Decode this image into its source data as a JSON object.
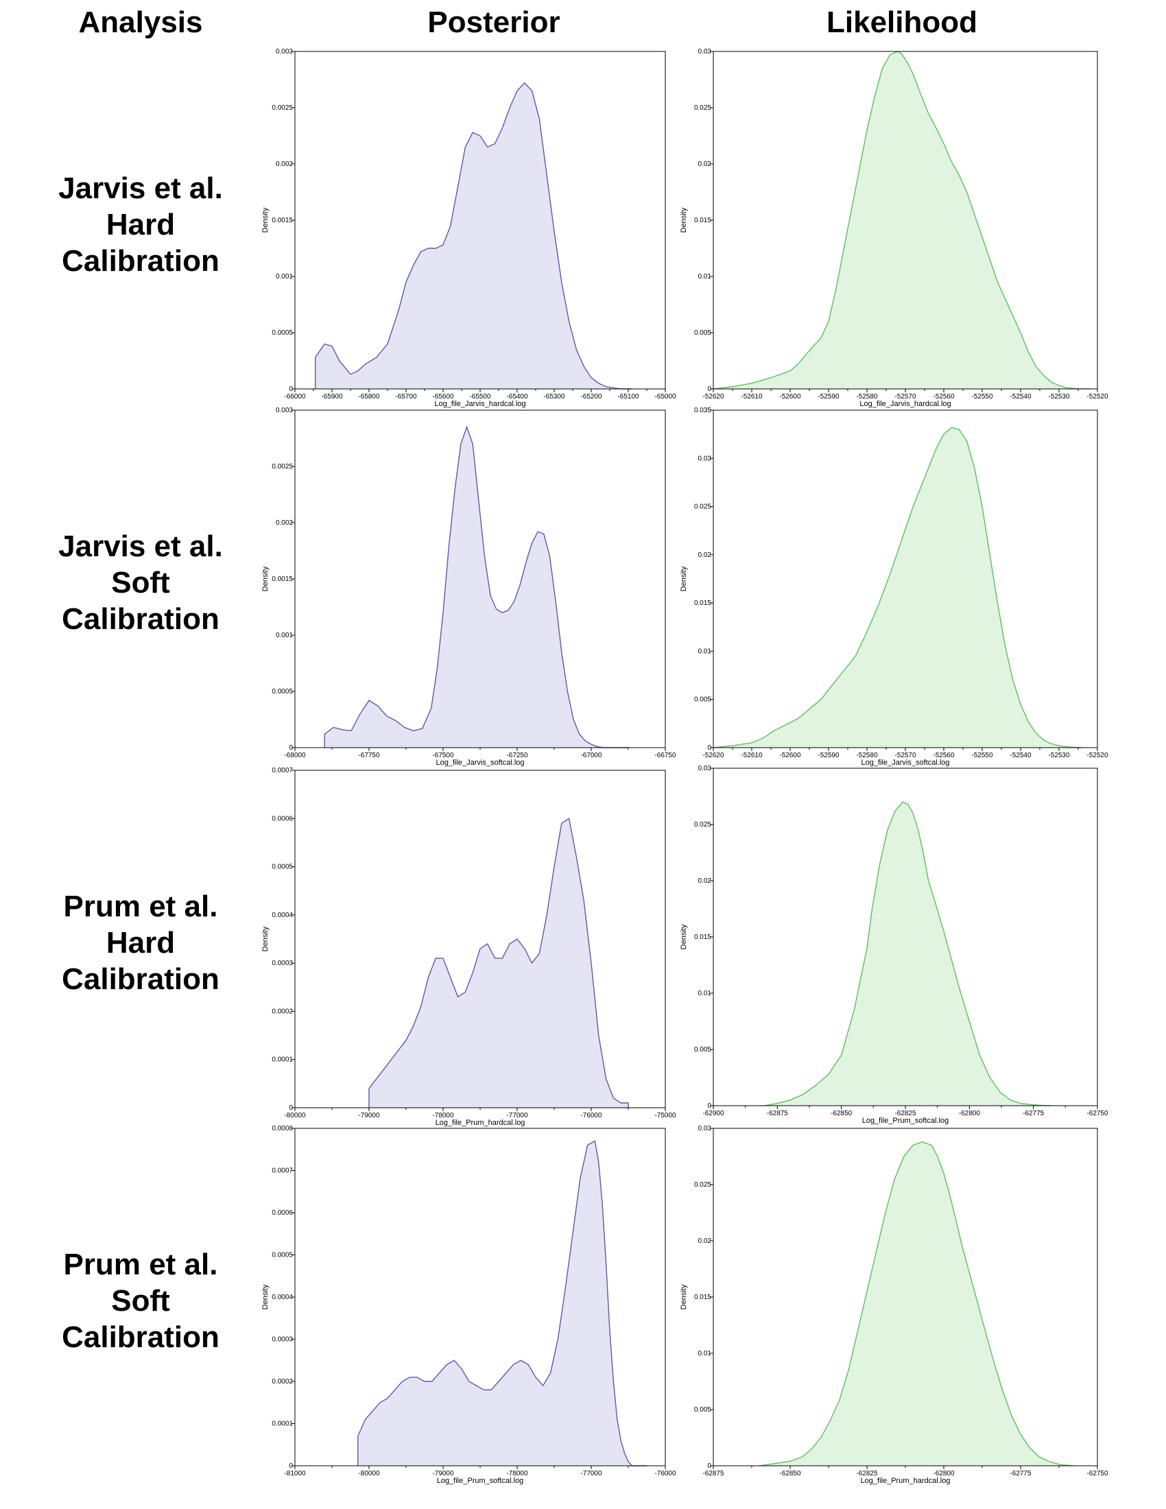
{
  "headers": {
    "analysis": "Analysis",
    "posterior": "Posterior",
    "likelihood": "Likelihood"
  },
  "rows": [
    {
      "lines": [
        "Jarvis et al.",
        "Hard",
        "Calibration"
      ]
    },
    {
      "lines": [
        "Jarvis et al.",
        "Soft",
        "Calibration"
      ]
    },
    {
      "lines": [
        "Prum et al.",
        "Hard",
        "Calibration"
      ]
    },
    {
      "lines": [
        "Prum et al.",
        "Soft",
        "Calibration"
      ]
    }
  ],
  "colors": {
    "posterior_line": "#5a5aa8",
    "posterior_fill": "#e4e4f4",
    "likelihood_line": "#5cbf5c",
    "likelihood_fill": "#e0f4e0"
  },
  "chart_data": [
    {
      "type": "area",
      "column": "posterior",
      "xlabel": "Log_file_Jarvis_hardcal.log",
      "ylabel": "Density",
      "xlim": [
        -66000,
        -65000
      ],
      "ylim": [
        0,
        0.003
      ],
      "xticks": [
        "-66000",
        "-65900",
        "-65800",
        "-65700",
        "-65600",
        "-65500",
        "-65400",
        "-65300",
        "-65200",
        "-65100",
        "-65000"
      ],
      "yticks": [
        "0",
        "0.0005",
        "0.001",
        "0.0015",
        "0.002",
        "0.0025",
        "0.003"
      ],
      "x": [
        -65945,
        -65945,
        -65920,
        -65900,
        -65880,
        -65850,
        -65830,
        -65810,
        -65780,
        -65750,
        -65720,
        -65700,
        -65680,
        -65660,
        -65640,
        -65620,
        -65600,
        -65580,
        -65560,
        -65540,
        -65520,
        -65500,
        -65480,
        -65460,
        -65440,
        -65420,
        -65400,
        -65380,
        -65360,
        -65340,
        -65320,
        -65300,
        -65280,
        -65260,
        -65240,
        -65220,
        -65200,
        -65180,
        -65160,
        -65140,
        -65120,
        -65100,
        -65090
      ],
      "y": [
        0,
        0.00028,
        0.0004,
        0.00038,
        0.00025,
        0.00013,
        0.00016,
        0.00022,
        0.00028,
        0.0004,
        0.0007,
        0.00095,
        0.0011,
        0.00122,
        0.00125,
        0.00125,
        0.00128,
        0.00145,
        0.0018,
        0.00215,
        0.00228,
        0.00225,
        0.00215,
        0.00218,
        0.00232,
        0.0025,
        0.00265,
        0.00272,
        0.00265,
        0.0024,
        0.0019,
        0.0014,
        0.00095,
        0.0006,
        0.00035,
        0.0002,
        0.0001,
        5e-05,
        2e-05,
        1e-05,
        0,
        0,
        0
      ]
    },
    {
      "type": "area",
      "column": "likelihood",
      "xlabel": "Log_file_Jarvis_hardcal.log",
      "ylabel": "Density",
      "xlim": [
        -52620,
        -52520
      ],
      "ylim": [
        0,
        0.03
      ],
      "xticks": [
        "-52620",
        "-52610",
        "-52600",
        "-52590",
        "-52580",
        "-52570",
        "-52560",
        "-52550",
        "-52540",
        "-52530",
        "-52520"
      ],
      "yticks": [
        "0",
        "0.005",
        "0.01",
        "0.015",
        "0.02",
        "0.025",
        "0.03"
      ],
      "x": [
        -52620,
        -52615,
        -52610,
        -52605,
        -52600,
        -52598,
        -52596,
        -52594,
        -52592,
        -52590,
        -52588,
        -52586,
        -52584,
        -52582,
        -52580,
        -52578,
        -52576,
        -52574,
        -52572,
        -52571,
        -52570,
        -52569,
        -52568,
        -52566,
        -52564,
        -52562,
        -52560,
        -52558,
        -52556,
        -52554,
        -52552,
        -52550,
        -52548,
        -52546,
        -52544,
        -52542,
        -52540,
        -52538,
        -52536,
        -52534,
        -52532,
        -52530,
        -52528,
        -52525,
        -52522
      ],
      "y": [
        0,
        0.0002,
        0.0005,
        0.001,
        0.0016,
        0.0022,
        0.003,
        0.0038,
        0.0045,
        0.006,
        0.009,
        0.0125,
        0.016,
        0.0195,
        0.023,
        0.026,
        0.0285,
        0.0297,
        0.03,
        0.0298,
        0.0293,
        0.0287,
        0.028,
        0.0262,
        0.0245,
        0.0232,
        0.0218,
        0.0202,
        0.019,
        0.0175,
        0.0155,
        0.0135,
        0.0115,
        0.0095,
        0.008,
        0.0065,
        0.005,
        0.0033,
        0.002,
        0.0012,
        0.0006,
        0.0003,
        0.0001,
        2e-05,
        0
      ]
    },
    {
      "type": "area",
      "column": "posterior",
      "xlabel": "Log_file_Jarvis_softcal.log",
      "ylabel": "Density",
      "xlim": [
        -68000,
        -66750
      ],
      "ylim": [
        0,
        0.003
      ],
      "xticks": [
        "-68000",
        "-67750",
        "-67500",
        "-67250",
        "-67000",
        "-66750"
      ],
      "yticks": [
        "0",
        "0.0005",
        "0.001",
        "0.0015",
        "0.002",
        "0.0025",
        "0.003"
      ],
      "x": [
        -67900,
        -67900,
        -67870,
        -67840,
        -67810,
        -67780,
        -67750,
        -67720,
        -67690,
        -67660,
        -67630,
        -67600,
        -67570,
        -67540,
        -67520,
        -67500,
        -67480,
        -67460,
        -67440,
        -67420,
        -67400,
        -67380,
        -67360,
        -67340,
        -67320,
        -67300,
        -67280,
        -67260,
        -67240,
        -67220,
        -67200,
        -67180,
        -67160,
        -67140,
        -67120,
        -67100,
        -67080,
        -67060,
        -67040,
        -67020,
        -67000,
        -66980,
        -66960,
        -66940,
        -66920,
        -66900,
        -66880,
        -66875
      ],
      "y": [
        0,
        0.00012,
        0.00018,
        0.00016,
        0.00015,
        0.0003,
        0.00042,
        0.00037,
        0.00028,
        0.00024,
        0.00018,
        0.00015,
        0.00017,
        0.00035,
        0.0007,
        0.0012,
        0.0018,
        0.0023,
        0.0027,
        0.00285,
        0.0027,
        0.0022,
        0.0017,
        0.00135,
        0.00123,
        0.0012,
        0.00122,
        0.0013,
        0.00145,
        0.00165,
        0.00182,
        0.00192,
        0.0019,
        0.0017,
        0.0013,
        0.00085,
        0.0005,
        0.00025,
        0.00012,
        6e-05,
        3e-05,
        1e-05,
        0,
        0,
        0,
        0,
        0,
        0
      ]
    },
    {
      "type": "area",
      "column": "likelihood",
      "xlabel": "Log_file_Jarvis_softcal.log",
      "ylabel": "Density",
      "xlim": [
        -52620,
        -52520
      ],
      "ylim": [
        0,
        0.035
      ],
      "xticks": [
        "-52620",
        "-52610",
        "-52600",
        "-52590",
        "-52580",
        "-52570",
        "-52560",
        "-52550",
        "-52540",
        "-52530",
        "-52520"
      ],
      "yticks": [
        "0",
        "0.005",
        "0.01",
        "0.015",
        "0.02",
        "0.025",
        "0.03",
        "0.035"
      ],
      "x": [
        -52620,
        -52615,
        -52610,
        -52607,
        -52604,
        -52601,
        -52598,
        -52595,
        -52592,
        -52589,
        -52586,
        -52583,
        -52580,
        -52577,
        -52574,
        -52571,
        -52568,
        -52565,
        -52562,
        -52560,
        -52558,
        -52556,
        -52554,
        -52552,
        -52550,
        -52548,
        -52546,
        -52544,
        -52542,
        -52540,
        -52538,
        -52536,
        -52534,
        -52532,
        -52530,
        -52527,
        -52524
      ],
      "y": [
        0,
        0.0002,
        0.0005,
        0.001,
        0.0018,
        0.0024,
        0.003,
        0.004,
        0.005,
        0.0065,
        0.008,
        0.0095,
        0.012,
        0.0148,
        0.018,
        0.0215,
        0.025,
        0.028,
        0.031,
        0.0325,
        0.0332,
        0.033,
        0.0318,
        0.029,
        0.025,
        0.02,
        0.015,
        0.0105,
        0.007,
        0.0045,
        0.0027,
        0.0015,
        0.0008,
        0.0004,
        0.0002,
        5e-05,
        0
      ]
    },
    {
      "type": "area",
      "column": "posterior",
      "xlabel": "Log_file_Prum_hardcal.log",
      "ylabel": "Density",
      "xlim": [
        -80000,
        -75000
      ],
      "ylim": [
        0,
        0.0007
      ],
      "xticks": [
        "-80000",
        "-79000",
        "-78000",
        "-77000",
        "-76000",
        "-75000"
      ],
      "yticks": [
        "0",
        "0.0001",
        "0.0002",
        "0.0003",
        "0.0004",
        "0.0005",
        "0.0006",
        "0.0007"
      ],
      "x": [
        -79000,
        -79000,
        -78900,
        -78800,
        -78700,
        -78600,
        -78500,
        -78400,
        -78300,
        -78200,
        -78100,
        -78000,
        -77900,
        -77800,
        -77700,
        -77600,
        -77500,
        -77400,
        -77300,
        -77200,
        -77100,
        -77000,
        -76900,
        -76800,
        -76700,
        -76600,
        -76500,
        -76400,
        -76300,
        -76200,
        -76100,
        -76000,
        -75900,
        -75800,
        -75700,
        -75600,
        -75500,
        -75500
      ],
      "y": [
        0,
        4e-05,
        6e-05,
        8e-05,
        0.0001,
        0.00012,
        0.00014,
        0.00017,
        0.00021,
        0.00027,
        0.00031,
        0.00031,
        0.00027,
        0.00023,
        0.00024,
        0.00028,
        0.00033,
        0.00034,
        0.00031,
        0.00031,
        0.00034,
        0.00035,
        0.00033,
        0.0003,
        0.00032,
        0.0004,
        0.0005,
        0.00059,
        0.0006,
        0.00052,
        0.00043,
        0.0003,
        0.00015,
        6e-05,
        2e-05,
        1e-05,
        1e-05,
        0
      ]
    },
    {
      "type": "area",
      "column": "likelihood",
      "xlabel": "Log_file_Prum_softcal.log",
      "ylabel": "Density",
      "xlim": [
        -62900,
        -62750
      ],
      "ylim": [
        0,
        0.03
      ],
      "xticks": [
        "-62900",
        "-62875",
        "-62850",
        "-62825",
        "-62800",
        "-62775",
        "-62750"
      ],
      "yticks": [
        "0",
        "0.005",
        "0.01",
        "0.015",
        "0.02",
        "0.025",
        "0.03"
      ],
      "x": [
        -62880,
        -62875,
        -62870,
        -62865,
        -62860,
        -62855,
        -62850,
        -62845,
        -62840,
        -62838,
        -62835,
        -62832,
        -62829,
        -62826,
        -62824,
        -62822,
        -62820,
        -62818,
        -62816,
        -62813,
        -62810,
        -62807,
        -62804,
        -62800,
        -62796,
        -62792,
        -62788,
        -62784,
        -62780,
        -62776,
        -62772,
        -62768
      ],
      "y": [
        0,
        0.0002,
        0.0005,
        0.001,
        0.0018,
        0.0028,
        0.0045,
        0.0085,
        0.014,
        0.0175,
        0.0215,
        0.0245,
        0.0262,
        0.027,
        0.0268,
        0.026,
        0.0245,
        0.0225,
        0.02,
        0.0178,
        0.0155,
        0.013,
        0.0105,
        0.0075,
        0.0045,
        0.0025,
        0.0012,
        0.0005,
        0.0002,
        0.0001,
        3e-05,
        0
      ]
    },
    {
      "type": "area",
      "column": "posterior",
      "xlabel": "Log_file_Prum_softcal.log",
      "ylabel": "Density",
      "xlim": [
        -81000,
        -76000
      ],
      "ylim": [
        0,
        0.0008
      ],
      "xticks": [
        "-81000",
        "-80000",
        "-79000",
        "-78000",
        "-77000",
        "-76000"
      ],
      "yticks": [
        "0",
        "0.0001",
        "0.0002",
        "0.0003",
        "0.0004",
        "0.0005",
        "0.0006",
        "0.0007",
        "0.0008"
      ],
      "x": [
        -80150,
        -80150,
        -80050,
        -79950,
        -79850,
        -79750,
        -79650,
        -79550,
        -79450,
        -79350,
        -79250,
        -79150,
        -79050,
        -78950,
        -78850,
        -78750,
        -78650,
        -78550,
        -78450,
        -78350,
        -78250,
        -78150,
        -78050,
        -77950,
        -77850,
        -77750,
        -77650,
        -77550,
        -77450,
        -77350,
        -77250,
        -77150,
        -77050,
        -76950,
        -76900,
        -76850,
        -76800,
        -76750,
        -76700,
        -76650,
        -76600,
        -76550,
        -76500,
        -76450,
        -76400,
        -76350,
        -76300,
        -76250
      ],
      "y": [
        0,
        7e-05,
        0.00011,
        0.00013,
        0.00015,
        0.00016,
        0.00018,
        0.0002,
        0.00021,
        0.00021,
        0.0002,
        0.0002,
        0.00022,
        0.00024,
        0.00025,
        0.00023,
        0.0002,
        0.00019,
        0.00018,
        0.00018,
        0.0002,
        0.00022,
        0.00024,
        0.00025,
        0.00024,
        0.00021,
        0.00019,
        0.00022,
        0.0003,
        0.00042,
        0.00055,
        0.00068,
        0.00076,
        0.00077,
        0.00072,
        0.00062,
        0.00048,
        0.00032,
        0.0002,
        0.00011,
        6e-05,
        3e-05,
        1e-05,
        0,
        0,
        0,
        0,
        0
      ]
    },
    {
      "type": "area",
      "column": "likelihood",
      "xlabel": "Log_file_Prum_hardcal.log",
      "ylabel": "Density",
      "xlim": [
        -62875,
        -62750
      ],
      "ylim": [
        0,
        0.03
      ],
      "xticks": [
        "-62875",
        "-62850",
        "-62825",
        "-62800",
        "-62775",
        "-62750"
      ],
      "yticks": [
        "0",
        "0.005",
        "0.01",
        "0.015",
        "0.02",
        "0.025",
        "0.03"
      ],
      "x": [
        -62860,
        -62855,
        -62850,
        -62846,
        -62843,
        -62840,
        -62837,
        -62834,
        -62831,
        -62828,
        -62825,
        -62822,
        -62819,
        -62816,
        -62813,
        -62810,
        -62807,
        -62804,
        -62802,
        -62800,
        -62798,
        -62796,
        -62794,
        -62792,
        -62790,
        -62787,
        -62784,
        -62781,
        -62778,
        -62775,
        -62772,
        -62769,
        -62766,
        -62762,
        -62758
      ],
      "y": [
        0,
        0.0002,
        0.0004,
        0.0008,
        0.0015,
        0.0025,
        0.004,
        0.0058,
        0.0085,
        0.012,
        0.0155,
        0.019,
        0.0225,
        0.0255,
        0.0275,
        0.0285,
        0.0288,
        0.0285,
        0.0275,
        0.026,
        0.024,
        0.0218,
        0.0195,
        0.0175,
        0.0155,
        0.0125,
        0.0095,
        0.0068,
        0.0045,
        0.0028,
        0.0016,
        0.0008,
        0.0004,
        0.0001,
        0
      ]
    }
  ]
}
